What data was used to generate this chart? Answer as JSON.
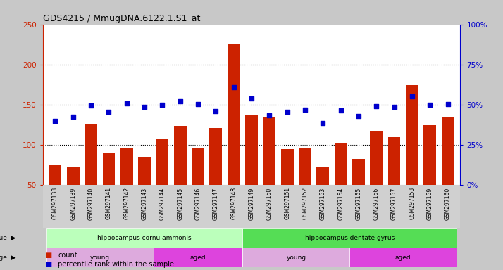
{
  "title": "GDS4215 / MmugDNA.6122.1.S1_at",
  "samples": [
    "GSM297138",
    "GSM297139",
    "GSM297140",
    "GSM297141",
    "GSM297142",
    "GSM297143",
    "GSM297144",
    "GSM297145",
    "GSM297146",
    "GSM297147",
    "GSM297148",
    "GSM297149",
    "GSM297150",
    "GSM297151",
    "GSM297152",
    "GSM297153",
    "GSM297154",
    "GSM297155",
    "GSM297156",
    "GSM297157",
    "GSM297158",
    "GSM297159",
    "GSM297160"
  ],
  "counts": [
    75,
    72,
    126,
    90,
    97,
    85,
    107,
    124,
    97,
    121,
    225,
    137,
    135,
    95,
    96,
    72,
    102,
    83,
    118,
    110,
    174,
    125,
    134
  ],
  "percentile_vals_left_scale": [
    130,
    135,
    149,
    141,
    152,
    147,
    150,
    154,
    151,
    142,
    172,
    158,
    137,
    141,
    144,
    127,
    143,
    136,
    148,
    147,
    160,
    150,
    151
  ],
  "bar_color": "#cc2200",
  "dot_color": "#0000cc",
  "ylim_left": [
    50,
    250
  ],
  "ylim_right": [
    0,
    100
  ],
  "yticks_left": [
    50,
    100,
    150,
    200,
    250
  ],
  "yticks_right": [
    0,
    25,
    50,
    75,
    100
  ],
  "grid_lines": [
    100,
    150,
    200
  ],
  "tissue_groups": [
    {
      "label": "hippocampus cornu ammonis",
      "start": 0,
      "end": 11,
      "color": "#bbffbb"
    },
    {
      "label": "hippocampus dentate gyrus",
      "start": 11,
      "end": 23,
      "color": "#55dd55"
    }
  ],
  "age_groups": [
    {
      "label": "young",
      "start": 0,
      "end": 6,
      "color": "#ddaadd"
    },
    {
      "label": "aged",
      "start": 6,
      "end": 11,
      "color": "#dd44dd"
    },
    {
      "label": "young",
      "start": 11,
      "end": 17,
      "color": "#ddaadd"
    },
    {
      "label": "aged",
      "start": 17,
      "end": 23,
      "color": "#dd44dd"
    }
  ],
  "legend_count_label": "count",
  "legend_pct_label": "percentile rank within the sample",
  "bg_color": "#c8c8c8",
  "plot_bg": "#ffffff",
  "xticklabel_bg": "#d0d0d0"
}
